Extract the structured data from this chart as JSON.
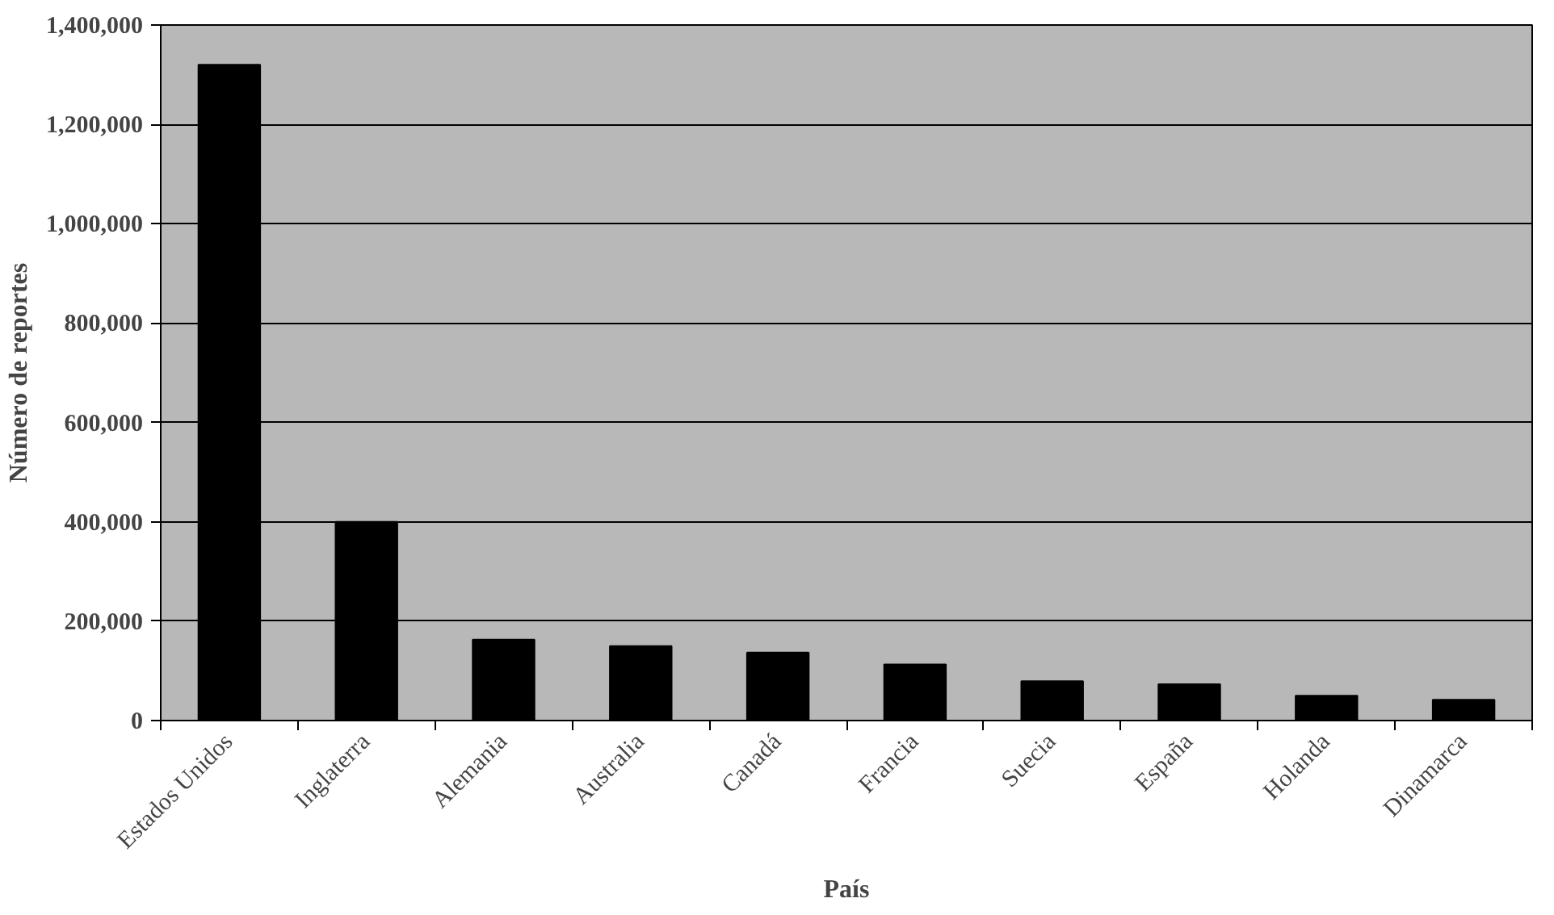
{
  "chart_data": {
    "type": "bar",
    "xlabel": "País",
    "ylabel": "Número de reportes",
    "categories": [
      "Estados Unidos",
      "Inglaterra",
      "Alemania",
      "Australia",
      "Canadá",
      "Francia",
      "Suecia",
      "España",
      "Holanda",
      "Dinamarca"
    ],
    "values": [
      1320000,
      400000,
      163000,
      150000,
      137000,
      113000,
      79000,
      73000,
      50000,
      42000
    ],
    "color": "#000000",
    "ylim": [
      0,
      1400000
    ],
    "yticks": [
      {
        "value": 0,
        "label": "0"
      },
      {
        "value": 200000,
        "label": "200,000"
      },
      {
        "value": 400000,
        "label": "400,000"
      },
      {
        "value": 600000,
        "label": "600,000"
      },
      {
        "value": 800000,
        "label": "800,000"
      },
      {
        "value": 1000000,
        "label": "1,000,000"
      },
      {
        "value": 1200000,
        "label": "1,200,000"
      },
      {
        "value": 1400000,
        "label": "1,400,000"
      }
    ],
    "grid": "y"
  }
}
